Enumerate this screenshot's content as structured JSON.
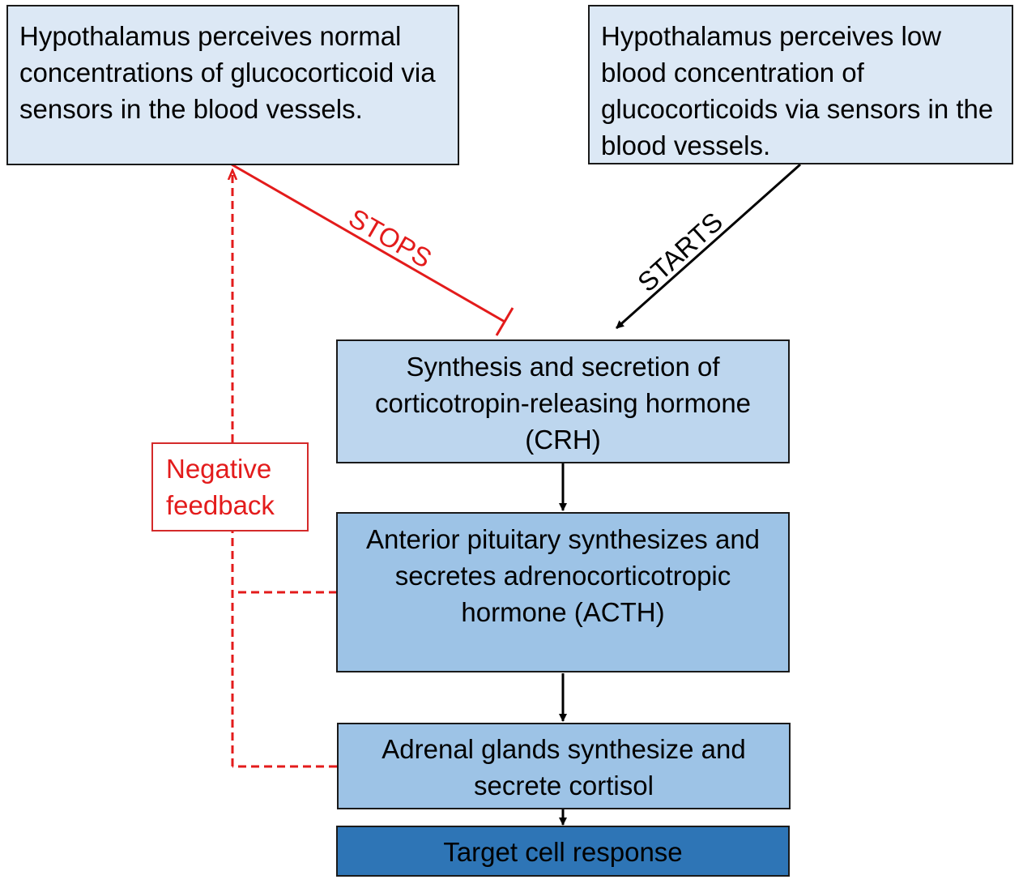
{
  "boxes": {
    "normal": "Hypothalamus perceives normal concentrations of glucocorticoid via sensors in the blood vessels.",
    "low": "Hypothalamus perceives low blood concentration of glucocorticoids via sensors in the blood vessels.",
    "crh": "Synthesis and secretion of corticotropin-releasing hormone (CRH)",
    "acth": "Anterior pituitary synthesizes and secretes adrenocorticotropic hormone (ACTH)",
    "adrenal": "Adrenal glands synthesize and secrete cortisol",
    "target": "Target cell response",
    "feedback": "Negative feedback"
  },
  "labels": {
    "stops": "STOPS",
    "starts": "STARTS"
  },
  "colors": {
    "inhibition": "#e31b1b",
    "activation": "#000000",
    "top_box": "#dce8f5",
    "crh_box": "#bdd6ee",
    "mid_box": "#9dc3e6",
    "target_box": "#2e75b6"
  }
}
